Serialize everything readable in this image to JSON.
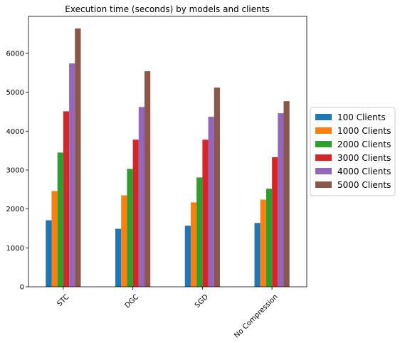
{
  "chart_data": {
    "type": "bar",
    "title": "Execution time (seconds) by models and clients",
    "xlabel": "",
    "ylabel": "",
    "categories": [
      "STC",
      "DGC",
      "SGD",
      "No Compression"
    ],
    "ylim": [
      0,
      6950
    ],
    "yticks": [
      0,
      1000,
      2000,
      3000,
      4000,
      5000,
      6000
    ],
    "grid": false,
    "legend_position": "center-right",
    "series": [
      {
        "name": "100 Clients",
        "color": "#1f77b4",
        "values": [
          1710,
          1490,
          1570,
          1640
        ]
      },
      {
        "name": "1000 Clients",
        "color": "#ff7f0e",
        "values": [
          2460,
          2350,
          2170,
          2240
        ]
      },
      {
        "name": "2000 Clients",
        "color": "#2ca02c",
        "values": [
          3450,
          3030,
          2810,
          2520
        ]
      },
      {
        "name": "3000 Clients",
        "color": "#d62728",
        "values": [
          4510,
          3780,
          3780,
          3330
        ]
      },
      {
        "name": "4000 Clients",
        "color": "#9467bd",
        "values": [
          5740,
          4620,
          4370,
          4460
        ]
      },
      {
        "name": "5000 Clients",
        "color": "#8c564b",
        "values": [
          6640,
          5540,
          5120,
          4770
        ]
      }
    ]
  }
}
